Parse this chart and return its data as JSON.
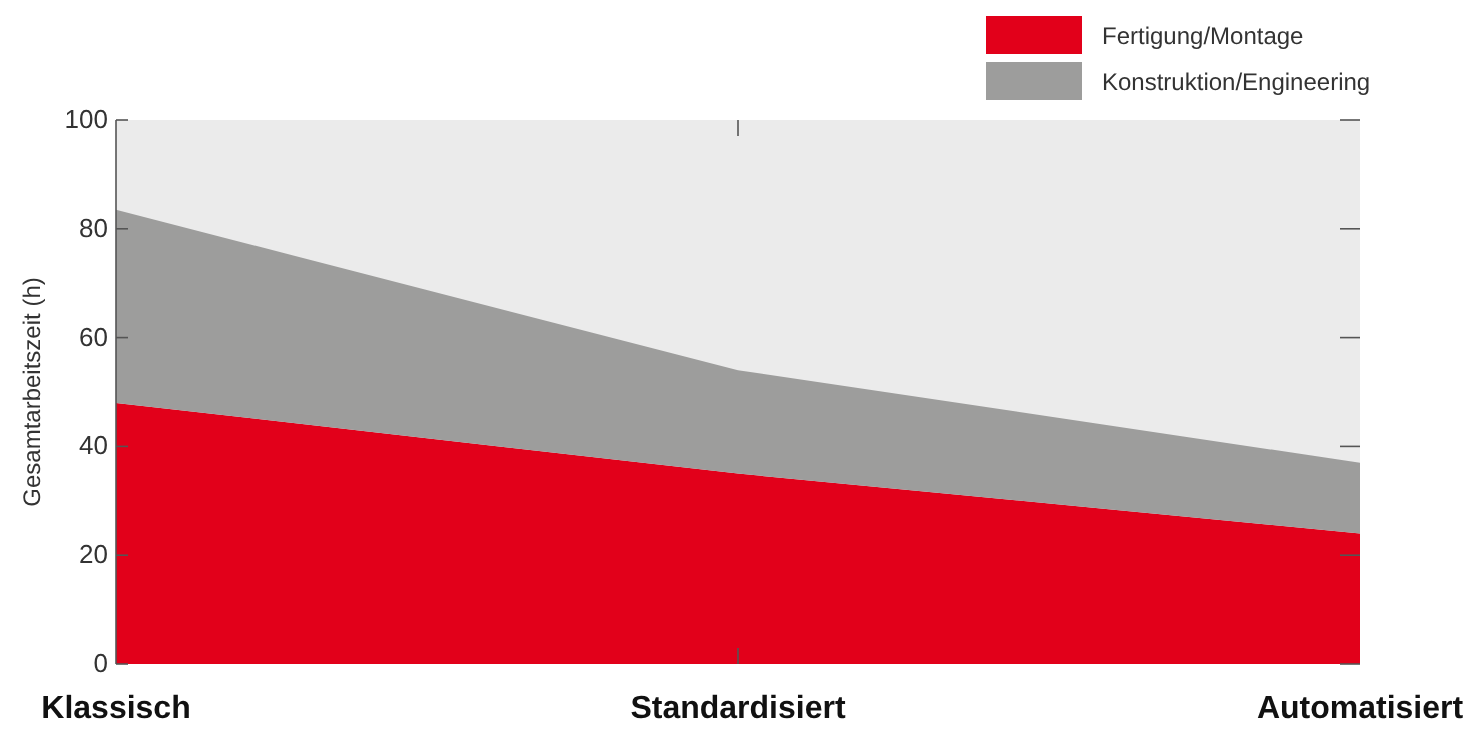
{
  "chart_data": {
    "type": "area",
    "stacked": true,
    "ylabel": "Gesamtarbeitszeit (h)",
    "categories": [
      "Klassisch",
      "Standardisiert",
      "Automatisiert"
    ],
    "series": [
      {
        "name": "Fertigung/Montage",
        "color": "#e2001a",
        "values": [
          48,
          35,
          24
        ]
      },
      {
        "name": "Konstruktion/Engineering",
        "color": "#9d9d9c",
        "values": [
          35.5,
          19,
          13
        ]
      }
    ],
    "ylim": [
      0,
      100
    ],
    "yticks": [
      0,
      20,
      40,
      60,
      80,
      100
    ],
    "legend": "top right",
    "grid": false
  }
}
